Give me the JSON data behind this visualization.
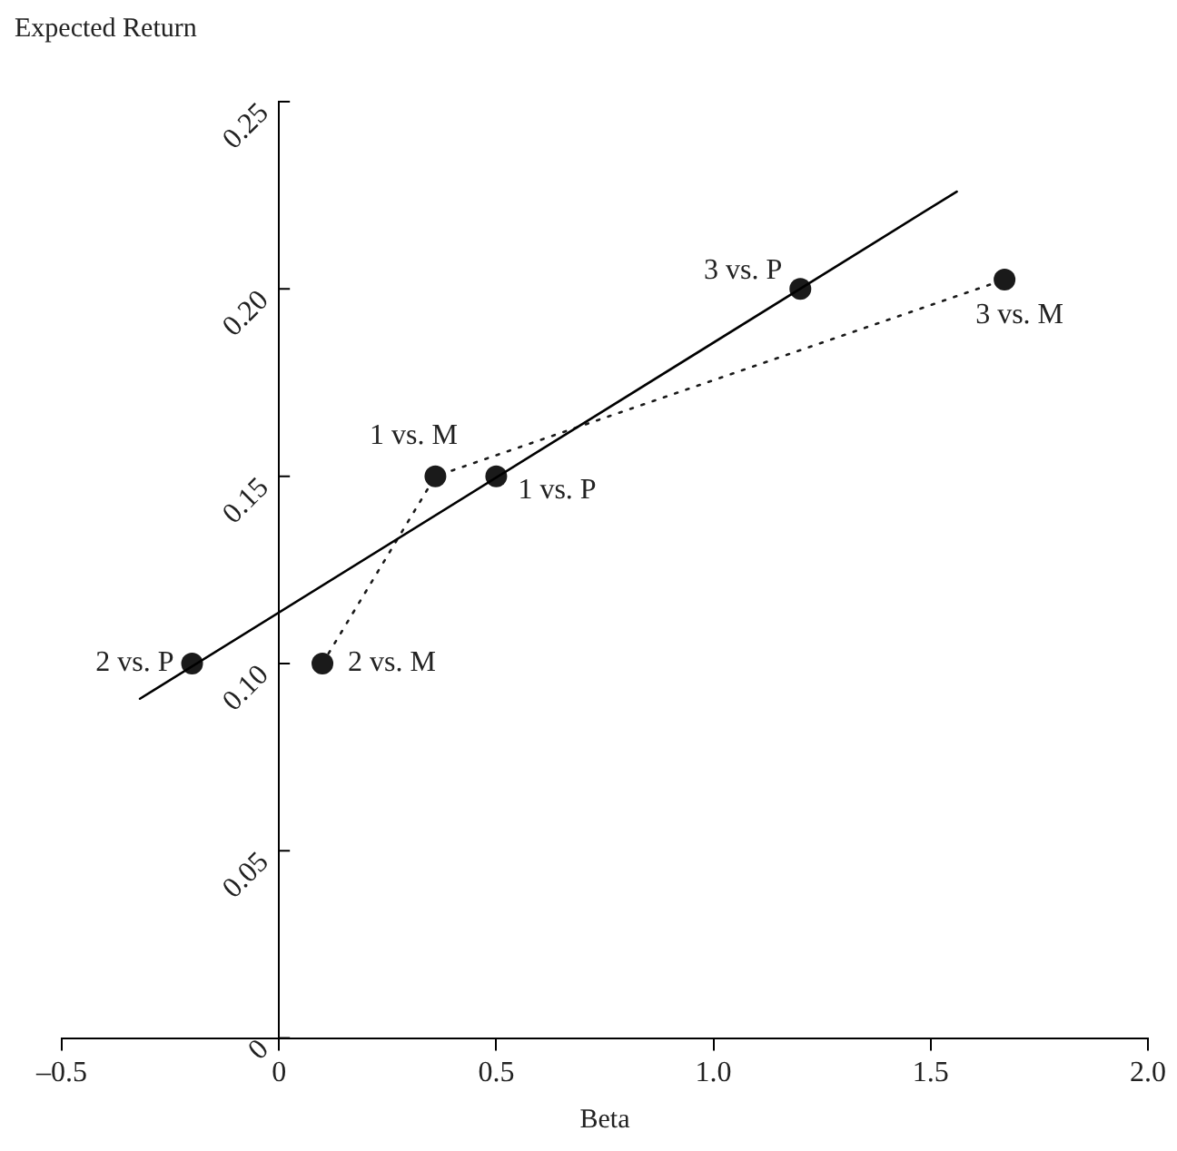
{
  "chart_data": {
    "type": "scatter",
    "xlabel": "Beta",
    "ylabel": "Expected Return",
    "xlim": [
      -0.5,
      2.0
    ],
    "xticks": [
      {
        "value": -0.5,
        "label": "–0.5"
      },
      0,
      0.5,
      {
        "value": 1.0,
        "label": "1.0"
      },
      1.5,
      {
        "value": 2.0,
        "label": "2.0"
      }
    ],
    "ylim": [
      0,
      0.25
    ],
    "yticks": [
      0,
      0.05,
      {
        "value": 0.1,
        "label": "0.10"
      },
      0.15,
      {
        "value": 0.2,
        "label": "0.20"
      },
      0.25
    ],
    "grid": false,
    "legend": false,
    "series": [
      {
        "type": "line",
        "color": "#000000",
        "marker": "none",
        "line_style": "solid",
        "x": [
          -0.32,
          1.56
        ],
        "values": [
          0.0906,
          0.226
        ]
      },
      {
        "type": "scatter",
        "color": "#1a1a1a",
        "marker": "circle",
        "x": [
          -0.2,
          0.5,
          1.2
        ],
        "values": [
          0.1,
          0.15,
          0.2
        ]
      },
      {
        "type": "line",
        "color": "#1a1a1a",
        "marker": "circle",
        "line_style": "dotted",
        "x": [
          0.1,
          0.36,
          1.67
        ],
        "values": [
          0.1,
          0.15,
          0.2025
        ]
      }
    ],
    "annotations": [
      {
        "text": "2 vs. P",
        "x": -0.2,
        "y": 0.1
      },
      {
        "text": "2 vs. M",
        "x": 0.1,
        "y": 0.1
      },
      {
        "text": "1 vs. M",
        "x": 0.36,
        "y": 0.15
      },
      {
        "text": "1 vs. P",
        "x": 0.5,
        "y": 0.15
      },
      {
        "text": "3 vs. P",
        "x": 1.2,
        "y": 0.2
      },
      {
        "text": "3 vs. M",
        "x": 1.67,
        "y": 0.2025
      }
    ]
  }
}
